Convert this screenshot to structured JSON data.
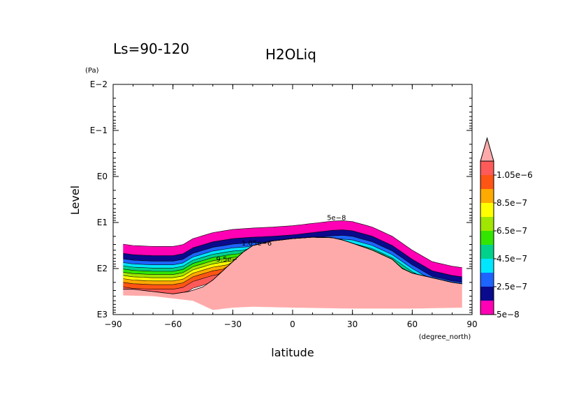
{
  "chart_data": {
    "type": "contour-filled",
    "title": "H2OLiq",
    "subtitle": "Ls=90-120",
    "xlabel": "latitude",
    "xunit": "(degree_north)",
    "ylabel": "Level",
    "yunit": "(Pa)",
    "xlim": [
      -90,
      90
    ],
    "x_ticks": [
      -90,
      -60,
      -30,
      0,
      30,
      60,
      90
    ],
    "x_tick_labels": [
      "−90",
      "−60",
      "−30",
      "0",
      "30",
      "60",
      "90"
    ],
    "ylog_range": [
      -2,
      3
    ],
    "y_tick_labels": [
      {
        "exp": -2,
        "label": "E−2"
      },
      {
        "exp": -1,
        "label": "E−1"
      },
      {
        "exp": 0,
        "label": "E0"
      },
      {
        "exp": 1,
        "label": "E1"
      },
      {
        "exp": 2,
        "label": "E2"
      },
      {
        "exp": 3,
        "label": "E3"
      }
    ],
    "colorbar": {
      "levels": [
        5e-08,
        1.5e-07,
        2.5e-07,
        3.5e-07,
        4.5e-07,
        5.5e-07,
        6.5e-07,
        7.5e-07,
        8.5e-07,
        9.5e-07,
        1.05e-06
      ],
      "colors": [
        "#ff00b4",
        "#0a0a8c",
        "#1e64ff",
        "#00e6ff",
        "#00d28c",
        "#32e600",
        "#a0e600",
        "#ffff00",
        "#ffaa00",
        "#ff5514",
        "#ff5a5a",
        "#ffaaaa"
      ],
      "labels": [
        {
          "level": 5e-08,
          "text": "5e−8"
        },
        {
          "level": 2.5e-07,
          "text": "2.5e−7"
        },
        {
          "level": 4.5e-07,
          "text": "4.5e−7"
        },
        {
          "level": 6.5e-07,
          "text": "6.5e−7"
        },
        {
          "level": 8.5e-07,
          "text": "8.5e−7"
        },
        {
          "level": 1.05e-06,
          "text": "1.05e−6"
        }
      ]
    },
    "top_boundary": [
      [
        -85,
        1.47
      ],
      [
        -80,
        1.5
      ],
      [
        -70,
        1.52
      ],
      [
        -60,
        1.52
      ],
      [
        -55,
        1.48
      ],
      [
        -50,
        1.35
      ],
      [
        -40,
        1.22
      ],
      [
        -30,
        1.15
      ],
      [
        -20,
        1.12
      ],
      [
        -10,
        1.1
      ],
      [
        0,
        1.07
      ],
      [
        10,
        1.02
      ],
      [
        20,
        0.97
      ],
      [
        25,
        0.96
      ],
      [
        30,
        0.98
      ],
      [
        40,
        1.1
      ],
      [
        50,
        1.3
      ],
      [
        60,
        1.6
      ],
      [
        70,
        1.85
      ],
      [
        80,
        1.95
      ],
      [
        85,
        1.98
      ]
    ],
    "band_thickness": [
      0.2,
      0.12,
      0.08,
      0.07,
      0.07,
      0.07,
      0.07,
      0.07,
      0.08,
      0.1,
      0.15
    ],
    "saturated_top": [
      [
        -88,
        2.45
      ],
      [
        -80,
        2.45
      ],
      [
        -70,
        2.5
      ],
      [
        -60,
        2.55
      ],
      [
        -52,
        2.5
      ],
      [
        -45,
        2.4
      ],
      [
        -40,
        2.25
      ],
      [
        -35,
        2.05
      ],
      [
        -30,
        1.85
      ],
      [
        -25,
        1.65
      ],
      [
        -20,
        1.5
      ],
      [
        -10,
        1.4
      ],
      [
        0,
        1.35
      ],
      [
        10,
        1.32
      ],
      [
        20,
        1.33
      ],
      [
        25,
        1.38
      ],
      [
        30,
        1.45
      ],
      [
        40,
        1.6
      ],
      [
        50,
        1.8
      ],
      [
        55,
        2.0
      ],
      [
        60,
        2.1
      ],
      [
        70,
        2.2
      ],
      [
        80,
        2.3
      ],
      [
        85,
        2.33
      ]
    ],
    "saturated_bottom": [
      [
        -88,
        2.58
      ],
      [
        -70,
        2.6
      ],
      [
        -50,
        2.7
      ],
      [
        -40,
        2.9
      ],
      [
        -30,
        2.85
      ],
      [
        -20,
        2.83
      ],
      [
        0,
        2.85
      ],
      [
        30,
        2.87
      ],
      [
        60,
        2.87
      ],
      [
        85,
        2.85
      ]
    ],
    "contour_annotations": [
      {
        "text": "5e−8",
        "lat": 22,
        "exp": 0.95
      },
      {
        "text": "1.05e−6",
        "lat": -18,
        "exp": 1.5
      },
      {
        "text": "9.5e−",
        "lat": -33,
        "exp": 1.85
      }
    ]
  }
}
